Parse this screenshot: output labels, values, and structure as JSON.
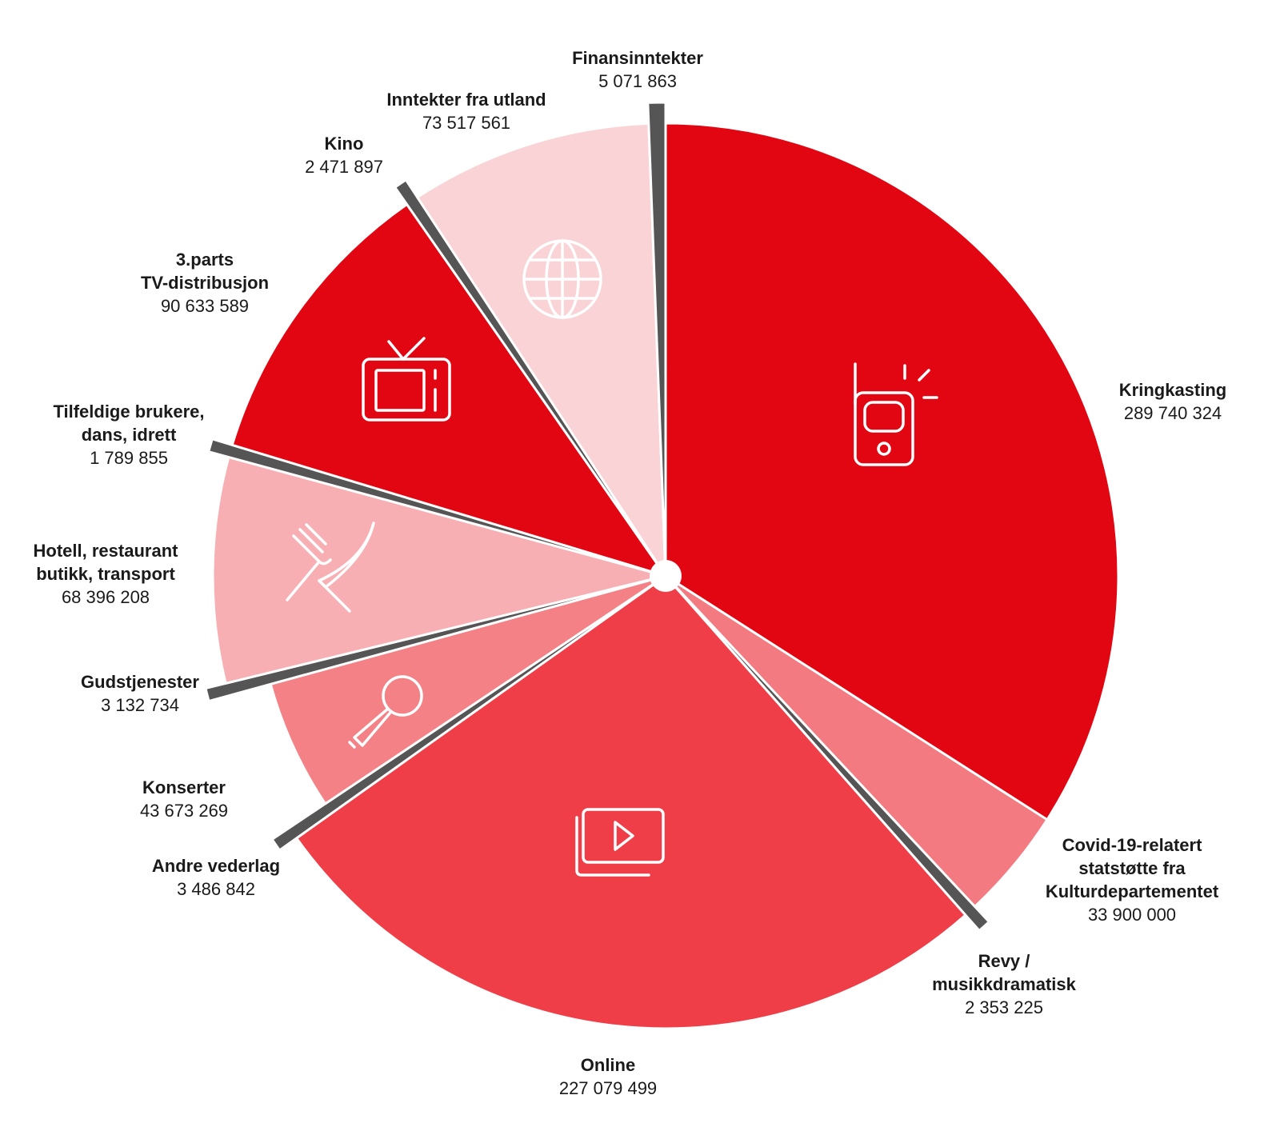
{
  "chart_data": {
    "type": "pie",
    "slices": [
      {
        "label_lines": [
          "Kringkasting"
        ],
        "value": 289740324,
        "value_text": "289 740 324",
        "color": "#e20613",
        "icon": "radio-icon"
      },
      {
        "label_lines": [
          "Covid-19-relatert",
          "statstøtte fra",
          "Kulturdepartementet"
        ],
        "value": 33900000,
        "value_text": "33 900 000",
        "color": "#f37a80",
        "icon": ""
      },
      {
        "label_lines": [
          "Revy /",
          "musikkdramatisk"
        ],
        "value": 2353225,
        "value_text": "2 353 225",
        "color": "#555555",
        "icon": ""
      },
      {
        "label_lines": [
          "Online"
        ],
        "value": 227079499,
        "value_text": "227 079 499",
        "color": "#ef3e48",
        "icon": "video-play-icon"
      },
      {
        "label_lines": [
          "Andre vederlag"
        ],
        "value": 3486842,
        "value_text": "3 486 842",
        "color": "#555555",
        "icon": ""
      },
      {
        "label_lines": [
          "Konserter"
        ],
        "value": 43673269,
        "value_text": "43 673 269",
        "color": "#f48186",
        "icon": "microphone-icon"
      },
      {
        "label_lines": [
          "Gudstjenester"
        ],
        "value": 3132734,
        "value_text": "3 132 734",
        "color": "#555555",
        "icon": ""
      },
      {
        "label_lines": [
          "Hotell, restaurant",
          "butikk, transport"
        ],
        "value": 68396208,
        "value_text": "68 396 208",
        "color": "#f7afb4",
        "icon": "fork-knife-icon"
      },
      {
        "label_lines": [
          "Tilfeldige brukere,",
          "dans, idrett"
        ],
        "value": 1789855,
        "value_text": "1 789 855",
        "color": "#555555",
        "icon": ""
      },
      {
        "label_lines": [
          "3.parts",
          "TV-distribusjon"
        ],
        "value": 90633589,
        "value_text": "90 633 589",
        "color": "#e20613",
        "icon": "tv-icon"
      },
      {
        "label_lines": [
          "Kino"
        ],
        "value": 2471897,
        "value_text": "2 471 897",
        "color": "#555555",
        "icon": ""
      },
      {
        "label_lines": [
          "Inntekter fra utland"
        ],
        "value": 73517561,
        "value_text": "73 517 561",
        "color": "#f9d3d5",
        "icon": "globe-icon"
      },
      {
        "label_lines": [
          "Finansinntekter"
        ],
        "value": 5071863,
        "value_text": "5 071 863",
        "color": "#555555",
        "icon": ""
      }
    ]
  }
}
